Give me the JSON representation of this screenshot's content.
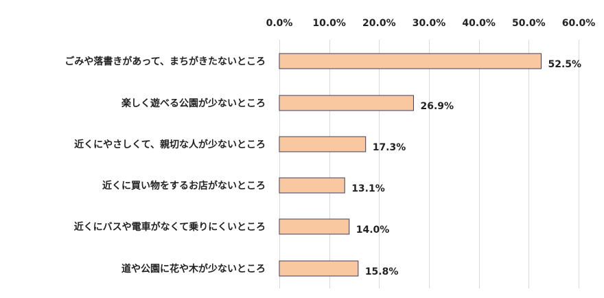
{
  "chart_data": {
    "type": "bar",
    "orientation": "horizontal",
    "categories": [
      "ごみや落書きがあって、まちがきたないところ",
      "楽しく遊べる公園が少ないところ",
      "近くにやさしくて、親切な人が少ないところ",
      "近くに買い物をするお店がないところ",
      "近くにバスや電車がなくて乗りにくいところ",
      "道や公園に花や木が少ないところ"
    ],
    "values": [
      52.5,
      26.9,
      17.3,
      13.1,
      14.0,
      15.8
    ],
    "value_labels": [
      "52.5%",
      "26.9%",
      "17.3%",
      "13.1%",
      "14.0%",
      "15.8%"
    ],
    "xlim": [
      0,
      60
    ],
    "x_ticks": [
      0,
      10,
      20,
      30,
      40,
      50,
      60
    ],
    "x_tick_labels": [
      "0.0%",
      "10.0%",
      "20.0%",
      "30.0%",
      "40.0%",
      "50.0%",
      "60.0%"
    ],
    "axis_position": "top",
    "grid": true,
    "title": "",
    "xlabel": "",
    "ylabel": "",
    "colors": {
      "bar_fill": "#F9C8A0",
      "bar_stroke": "#3B3B5C",
      "grid": "#D9D9D9",
      "text": "#222222"
    }
  }
}
